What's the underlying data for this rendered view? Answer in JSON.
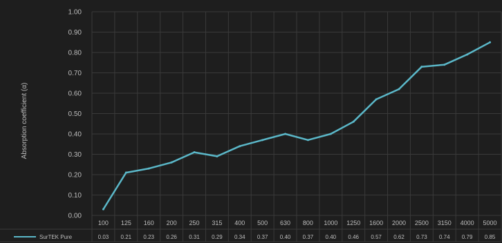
{
  "chart_data": {
    "type": "line",
    "title": "",
    "ylabel": "Absorption coefficient (α)",
    "xlabel": "",
    "ylim": [
      0,
      1.0
    ],
    "y_ticks": [
      "0.00",
      "0.10",
      "0.20",
      "0.30",
      "0.40",
      "0.50",
      "0.60",
      "0.70",
      "0.80",
      "0.90",
      "1.00"
    ],
    "grid": true,
    "legend": "bottom-left data table",
    "categories": [
      "100",
      "125",
      "160",
      "200",
      "250",
      "315",
      "400",
      "500",
      "630",
      "800",
      "1000",
      "1250",
      "1600",
      "2000",
      "2500",
      "3150",
      "4000",
      "5000"
    ],
    "series": [
      {
        "name": "SurTEK Pure",
        "color": "#5bb8c9",
        "values": [
          0.03,
          0.21,
          0.23,
          0.26,
          0.31,
          0.29,
          0.34,
          0.37,
          0.4,
          0.37,
          0.4,
          0.46,
          0.57,
          0.62,
          0.73,
          0.74,
          0.79,
          0.85
        ],
        "labels": [
          "0.03",
          "0.21",
          "0.23",
          "0.26",
          "0.31",
          "0.29",
          "0.34",
          "0.37",
          "0.40",
          "0.37",
          "0.40",
          "0.46",
          "0.57",
          "0.62",
          "0.73",
          "0.74",
          "0.79",
          "0.85"
        ]
      }
    ]
  }
}
